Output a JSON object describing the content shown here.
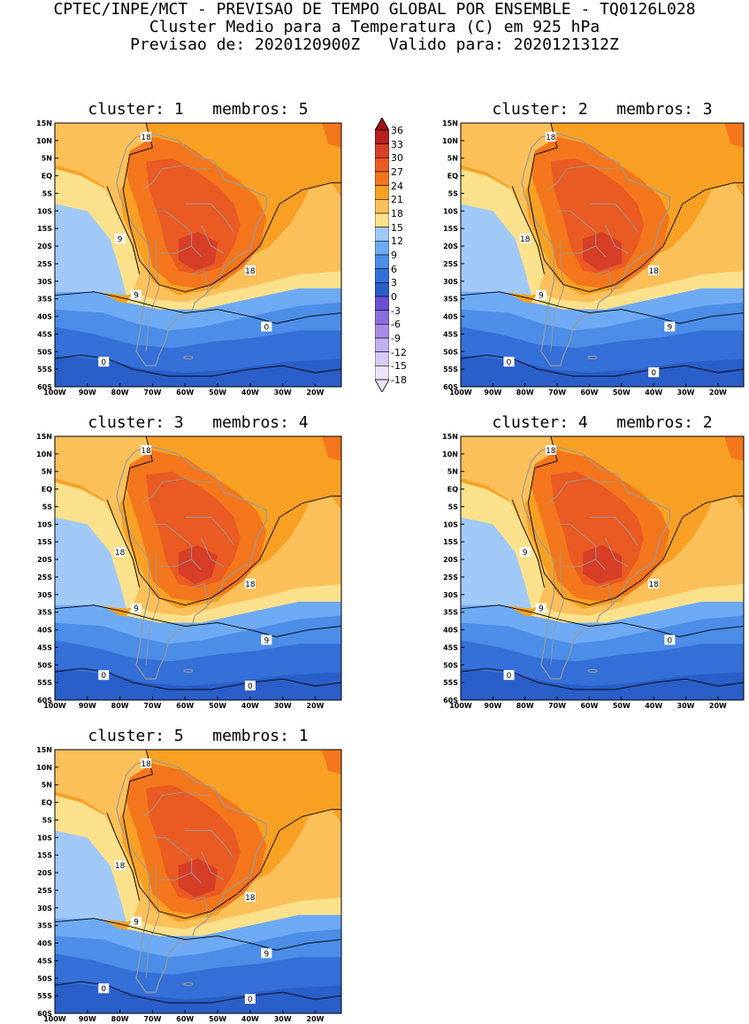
{
  "header": {
    "line1": "CPTEC/INPE/MCT - PREVISAO DE TEMPO GLOBAL POR ENSEMBLE - TQ0126L028",
    "line2": "Cluster Medio para a Temperatura (C) em 925 hPa",
    "line3": "Previsao de: 2020120900Z   Valido para: 2020121312Z"
  },
  "colors": {
    "c_-18": "#ece3fa",
    "c_-15": "#d9c9f5",
    "c_-12": "#c3aef0",
    "c_-9": "#a88ce8",
    "c_-6": "#8a6ddf",
    "c_-3": "#6a4fd2",
    "c_0": "#2a5ec8",
    "c_3": "#356fd8",
    "c_6": "#4b8de7",
    "c_9": "#6eaaf3",
    "c_12": "#a1c9f8",
    "c_15": "#fbe18b",
    "c_18": "#fbc059",
    "c_21": "#f8a024",
    "c_24": "#f3761c",
    "c_27": "#ea5a23",
    "c_30": "#d63e27",
    "c_33": "#b8201f",
    "c_36": "#9b1417",
    "land_outline": "#9a9a9a",
    "contour": "#000000"
  },
  "colorbar": {
    "labels": [
      "36",
      "33",
      "30",
      "27",
      "24",
      "21",
      "18",
      "15",
      "12",
      "9",
      "6",
      "3",
      "0",
      "-3",
      "-6",
      "-9",
      "-12",
      "-15",
      "-18"
    ]
  },
  "axes": {
    "lat_ticks": [
      "15N",
      "10N",
      "5N",
      "EQ",
      "5S",
      "10S",
      "15S",
      "20S",
      "25S",
      "30S",
      "35S",
      "40S",
      "45S",
      "50S",
      "55S",
      "60S"
    ],
    "lon_ticks": [
      "100W",
      "90W",
      "80W",
      "70W",
      "60W",
      "50W",
      "40W",
      "30W",
      "20W"
    ]
  },
  "panels": [
    {
      "title": "cluster: 1   membros: 5",
      "contour_labels": [
        "18",
        "18",
        "9",
        "9",
        "0",
        "0"
      ]
    },
    {
      "title": "cluster: 2   membros: 3",
      "contour_labels": [
        "18",
        "18",
        "18",
        "9",
        "9",
        "0",
        "0"
      ]
    },
    {
      "title": "cluster: 3   membros: 4",
      "contour_labels": [
        "18",
        "18",
        "18",
        "9",
        "9",
        "0",
        "0"
      ]
    },
    {
      "title": "cluster: 4   membros: 2",
      "contour_labels": [
        "18",
        "18",
        "9",
        "9",
        "0",
        "0"
      ]
    },
    {
      "title": "cluster: 5   membros: 1",
      "contour_labels": [
        "18",
        "18",
        "18",
        "9",
        "9",
        "0",
        "0"
      ]
    }
  ]
}
